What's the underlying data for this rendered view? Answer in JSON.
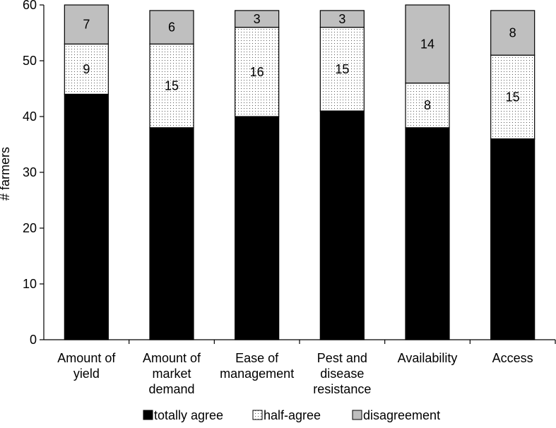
{
  "chart_data": {
    "type": "bar",
    "stacked": true,
    "ylabel": "# farmers",
    "xlabel": "",
    "ylim": [
      0,
      60
    ],
    "yticks": [
      0,
      10,
      20,
      30,
      40,
      50,
      60
    ],
    "grid": false,
    "legend_position": "bottom",
    "categories": [
      [
        "Amount of",
        "yield"
      ],
      [
        "Amount of",
        "market",
        "demand"
      ],
      [
        "Ease of",
        "management"
      ],
      [
        "Pest and",
        "disease",
        "resistance"
      ],
      [
        "Availability"
      ],
      [
        "Access"
      ]
    ],
    "series": [
      {
        "name": "totally agree",
        "values": [
          44,
          38,
          40,
          41,
          38,
          36
        ],
        "color": "#000000",
        "pattern": "solid",
        "show_labels": false
      },
      {
        "name": "half-agree",
        "values": [
          9,
          15,
          16,
          15,
          8,
          15
        ],
        "color": "#ffffff",
        "pattern": "dots",
        "show_labels": true
      },
      {
        "name": "disagreement",
        "values": [
          7,
          6,
          3,
          3,
          14,
          8
        ],
        "color": "#bfbfbf",
        "pattern": "solid",
        "show_labels": true
      }
    ]
  }
}
